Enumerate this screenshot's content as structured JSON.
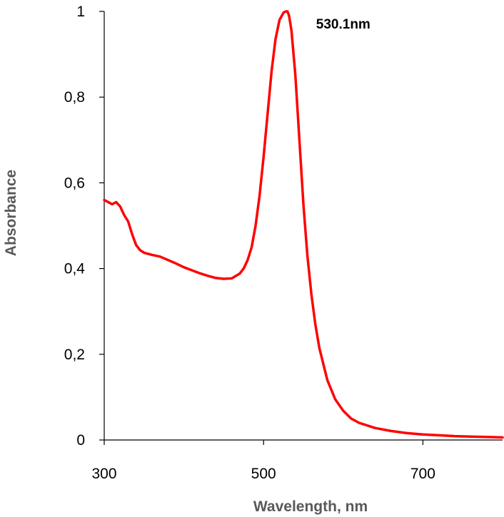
{
  "chart_data": {
    "type": "line",
    "title": "",
    "xlabel": "Wavelength, nm",
    "ylabel": "Absorbance",
    "xlim": [
      300,
      800
    ],
    "ylim": [
      0,
      1
    ],
    "x_ticks": [
      300,
      500,
      700
    ],
    "x_tick_labels": [
      "300",
      "500",
      "700"
    ],
    "y_ticks": [
      0,
      0.2,
      0.4,
      0.6,
      0.8,
      1
    ],
    "y_tick_labels": [
      "0",
      "0,2",
      "0,4",
      "0,6",
      "0,8",
      "1"
    ],
    "grid": false,
    "legend": "none",
    "annotation": {
      "text": "530.1nm",
      "x": 530.1,
      "y": 1.0
    },
    "series": [
      {
        "color": "#ff0000",
        "x": [
          300,
          305,
          310,
          315,
          320,
          325,
          330,
          335,
          340,
          345,
          350,
          360,
          370,
          380,
          390,
          400,
          410,
          420,
          430,
          440,
          450,
          460,
          470,
          475,
          480,
          485,
          490,
          495,
          500,
          505,
          510,
          515,
          520,
          525,
          528,
          530,
          532,
          535,
          540,
          545,
          550,
          555,
          560,
          565,
          570,
          580,
          590,
          600,
          610,
          620,
          640,
          660,
          680,
          700,
          720,
          740,
          760,
          780,
          800
        ],
        "y": [
          0.56,
          0.555,
          0.55,
          0.555,
          0.545,
          0.525,
          0.51,
          0.48,
          0.455,
          0.443,
          0.437,
          0.432,
          0.428,
          0.42,
          0.412,
          0.403,
          0.396,
          0.389,
          0.383,
          0.378,
          0.376,
          0.377,
          0.388,
          0.4,
          0.42,
          0.45,
          0.5,
          0.57,
          0.66,
          0.76,
          0.86,
          0.935,
          0.98,
          0.997,
          1.0,
          1.0,
          0.99,
          0.955,
          0.85,
          0.7,
          0.55,
          0.43,
          0.34,
          0.27,
          0.215,
          0.14,
          0.095,
          0.068,
          0.05,
          0.04,
          0.028,
          0.021,
          0.016,
          0.013,
          0.011,
          0.009,
          0.008,
          0.007,
          0.006
        ]
      }
    ]
  }
}
